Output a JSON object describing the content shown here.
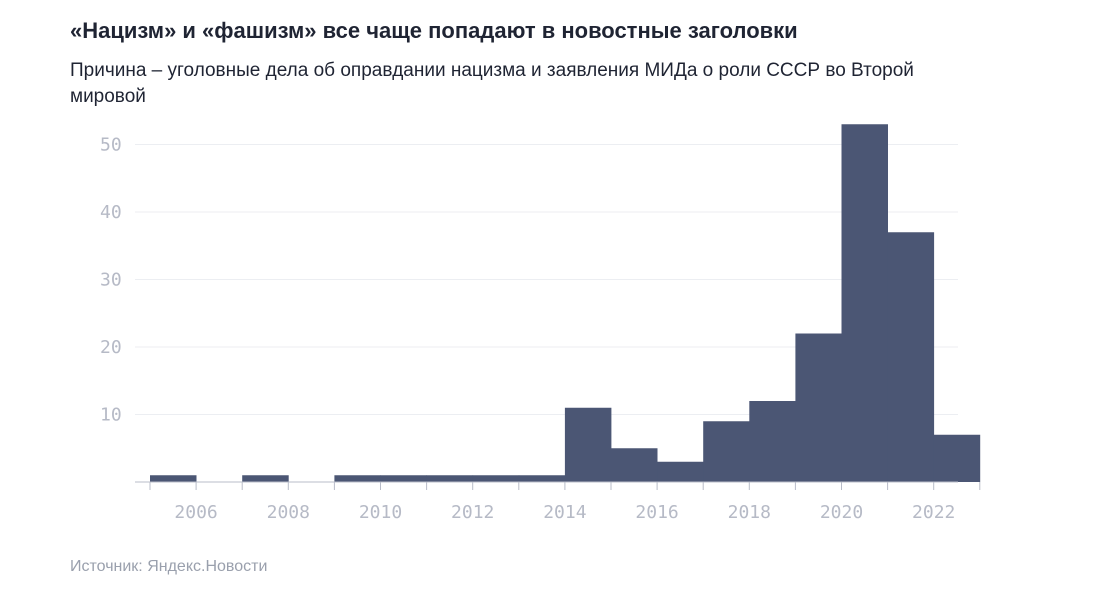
{
  "title": "«Нацизм» и «фашизм» все чаще попадают в новостные заголовки",
  "subtitle": "Причина – уголовные дела об оправдании нацизма и заявления МИДа о роли СССР во Второй мировой",
  "source": "Источник: Яндекс.Новости",
  "colors": {
    "bar": "#4b5674",
    "grid": "#eceef2",
    "axis": "#b8bcc8"
  },
  "chart_data": {
    "type": "bar",
    "title": "«Нацизм» и «фашизм» все чаще попадают в новостные заголовки",
    "x": [
      2005,
      2006,
      2007,
      2008,
      2009,
      2010,
      2011,
      2012,
      2013,
      2014,
      2015,
      2016,
      2017,
      2018,
      2019,
      2020,
      2021,
      2022
    ],
    "values": [
      1,
      0,
      1,
      0,
      1,
      1,
      1,
      1,
      1,
      11,
      5,
      3,
      9,
      12,
      22,
      53,
      37,
      7
    ],
    "ylim": [
      0,
      55
    ],
    "yticks": [
      10,
      20,
      30,
      40,
      50
    ],
    "xticks": [
      "2006",
      "2008",
      "2010",
      "2012",
      "2014",
      "2016",
      "2018",
      "2020",
      "2022"
    ],
    "grid": true
  }
}
